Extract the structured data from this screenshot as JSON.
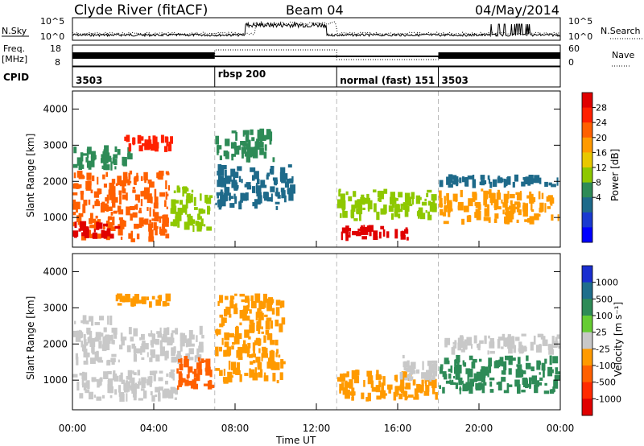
{
  "header": {
    "title": "Clyde River (fitACF)",
    "beam": "Beam 04",
    "date": "04/May/2014"
  },
  "noise_panel": {
    "left_label": "N.Sky",
    "right_label": "N.Search",
    "left_ticks": [
      "10^5",
      "10^0"
    ],
    "right_ticks": [
      "10^5",
      "10^0"
    ]
  },
  "freq_panel": {
    "left_label": "Freq.",
    "left_unit": "[MHz]",
    "right_label": "Nave",
    "left_ticks": [
      "18",
      "8"
    ],
    "right_ticks": [
      "60",
      "0"
    ]
  },
  "cpid_panel": {
    "label": "CPID",
    "segments": [
      {
        "name": "3503",
        "start_hour": 0,
        "end_hour": 7
      },
      {
        "name": "rbsp 200",
        "start_hour": 7,
        "end_hour": 13
      },
      {
        "name": "normal (fast) 151",
        "start_hour": 13,
        "end_hour": 18
      },
      {
        "name": "3503",
        "start_hour": 18,
        "end_hour": 24
      }
    ]
  },
  "axes": {
    "x_ticks": [
      "00:00",
      "04:00",
      "08:00",
      "12:00",
      "16:00",
      "20:00",
      "00:00"
    ],
    "x_title": "Time UT",
    "y_title": "Slant Range [km]",
    "y_ticks": [
      "1000",
      "2000",
      "3000",
      "4000"
    ]
  },
  "power_scale": {
    "title": "Power [dB]",
    "labels": [
      "28",
      "24",
      "20",
      "16",
      "12",
      "8",
      "4"
    ],
    "colors": [
      "#e00000",
      "#ff2000",
      "#ff6000",
      "#ff9a00",
      "#e8c800",
      "#8ec800",
      "#2e8b57",
      "#1e6a8a",
      "#1a3ad0",
      "#0000ff"
    ]
  },
  "velocity_scale": {
    "title": "Velocity [m s⁻¹]",
    "labels": [
      "1000",
      "500",
      "100",
      "25",
      "-25",
      "-100",
      "-500",
      "-1000"
    ],
    "colors": [
      "#1a2fd0",
      "#1f6e8c",
      "#2e8b57",
      "#66cc33",
      "#c8c8c8",
      "#ff9a00",
      "#ff6000",
      "#ff2a00",
      "#e00000"
    ]
  },
  "chart_data": [
    {
      "type": "heatmap",
      "title": "Power [dB]",
      "xlabel": "Time UT",
      "ylabel": "Slant Range [km]",
      "xlim": [
        0,
        24
      ],
      "ylim": [
        180,
        4500
      ],
      "clim": [
        0,
        30
      ],
      "regions": [
        {
          "t0": 0.0,
          "t1": 4.8,
          "r0": 300,
          "r1": 2300,
          "value": 22
        },
        {
          "t0": 0.0,
          "t1": 2.5,
          "r0": 400,
          "r1": 900,
          "value": 28
        },
        {
          "t0": 0.0,
          "t1": 3.0,
          "r0": 2300,
          "r1": 3000,
          "value": 10
        },
        {
          "t0": 2.5,
          "t1": 5.0,
          "r0": 2800,
          "r1": 3300,
          "value": 26
        },
        {
          "t0": 4.8,
          "t1": 7.0,
          "r0": 600,
          "r1": 1900,
          "value": 14
        },
        {
          "t0": 7.0,
          "t1": 10.0,
          "r0": 2500,
          "r1": 3500,
          "value": 10
        },
        {
          "t0": 7.0,
          "t1": 11.0,
          "r0": 1200,
          "r1": 2500,
          "value": 6
        },
        {
          "t0": 13.0,
          "t1": 18.0,
          "r0": 900,
          "r1": 1800,
          "value": 12
        },
        {
          "t0": 13.2,
          "t1": 17.0,
          "r0": 350,
          "r1": 800,
          "value": 29
        },
        {
          "t0": 18.0,
          "t1": 24.0,
          "r0": 800,
          "r1": 1800,
          "value": 18
        },
        {
          "t0": 18.0,
          "t1": 24.0,
          "r0": 1800,
          "r1": 2200,
          "value": 6
        }
      ]
    },
    {
      "type": "heatmap",
      "title": "Velocity [m s⁻¹]",
      "xlabel": "Time UT",
      "ylabel": "Slant Range [km]",
      "xlim": [
        0,
        24
      ],
      "ylim": [
        180,
        4500
      ],
      "clim": [
        -1000,
        1000
      ],
      "regions": [
        {
          "t0": 0.0,
          "t1": 5.2,
          "r0": 400,
          "r1": 1300,
          "value": 60
        },
        {
          "t0": 2.5,
          "t1": 4.0,
          "r0": 650,
          "r1": 1000,
          "value": 110
        },
        {
          "t0": 0.0,
          "t1": 6.5,
          "r0": 1400,
          "r1": 2500,
          "value": 0
        },
        {
          "t0": 0.0,
          "t1": 2.0,
          "r0": 2500,
          "r1": 2800,
          "value": 60
        },
        {
          "t0": 2.0,
          "t1": 5.0,
          "r0": 3000,
          "r1": 3400,
          "value": -200
        },
        {
          "t0": 5.0,
          "t1": 7.0,
          "r0": 700,
          "r1": 1700,
          "value": -500
        },
        {
          "t0": 7.0,
          "t1": 10.5,
          "r0": 900,
          "r1": 3400,
          "value": -300
        },
        {
          "t0": 13.0,
          "t1": 18.0,
          "r0": 400,
          "r1": 1300,
          "value": -300
        },
        {
          "t0": 16.0,
          "t1": 18.0,
          "r0": 900,
          "r1": 1700,
          "value": 60
        },
        {
          "t0": 18.0,
          "t1": 24.0,
          "r0": 600,
          "r1": 1700,
          "value": 500
        },
        {
          "t0": 18.0,
          "t1": 24.0,
          "r0": 1700,
          "r1": 2300,
          "value": 0
        }
      ]
    }
  ]
}
